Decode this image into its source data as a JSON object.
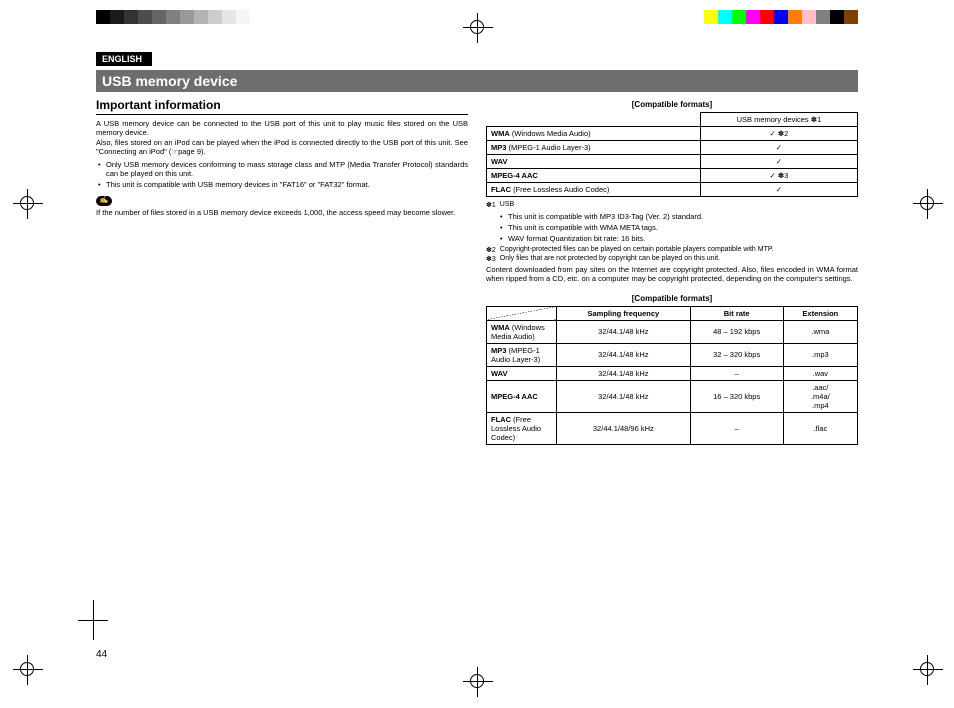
{
  "colorbar_left": [
    "#000000",
    "#1a1a1a",
    "#333333",
    "#4d4d4d",
    "#666666",
    "#808080",
    "#999999",
    "#b3b3b3",
    "#cccccc",
    "#e6e6e6",
    "#f5f5f5",
    "#ffffff"
  ],
  "colorbar_right": [
    "#ffffff",
    "#ffff00",
    "#00ffff",
    "#00ff00",
    "#ff00ff",
    "#ff0000",
    "#0000ff",
    "#ff8000",
    "#ffc0cb",
    "#808080",
    "#000000",
    "#804000"
  ],
  "lang_label": "ENGLISH",
  "title": "USB memory device",
  "subhead": "Important information",
  "para1": "A USB memory device can be connected to the USB port of this unit to play music files stored on the USB memory device.",
  "para2": "Also, files stored on an iPod can be played when the iPod is connected directly to the USB port of this unit. See \"Connecting an iPod\" (☞page 9).",
  "bul1": "Only USB memory devices conforming to mass storage class and MTP (Media Transfer Protocol) standards can be played on this unit.",
  "bul2": "This unit is compatible with USB memory devices in \"FAT16\" or \"FAT32\" format.",
  "note_text": "If the number of files stored in a USB memory device exceeds 1,000, the access speed may become slower.",
  "tbl1_caption": "[Compatible formats]",
  "tbl1_header": "USB memory devices ✽1",
  "tbl1_rows": [
    {
      "name_bold": "WMA",
      "name_rest": " (Windows Media Audio)",
      "val": "✓ ✽2"
    },
    {
      "name_bold": "MP3",
      "name_rest": " (MPEG-1 Audio Layer-3)",
      "val": "✓"
    },
    {
      "name_bold": "WAV",
      "name_rest": "",
      "val": "✓"
    },
    {
      "name_bold": "MPEG-4 AAC",
      "name_rest": "",
      "val": "✓ ✽3"
    },
    {
      "name_bold": "FLAC",
      "name_rest": " (Free Lossless Audio Codec)",
      "val": "✓"
    }
  ],
  "fn1_label": "✽1",
  "fn1_text": "USB",
  "fn1_b1": "This unit is compatible with MP3 ID3-Tag (Ver. 2) standard.",
  "fn1_b2": "This unit is compatible with WMA META tags.",
  "fn1_b3": "WAV format Quantization bit rate: 16 bits.",
  "fn2_label": "✽2",
  "fn2_text": "Copyright-protected files can be played on certain portable players compatible with MTP.",
  "fn3_label": "✽3",
  "fn3_text": "Only files that are not protected by copyright can be played on this unit.",
  "fn_tail": "Content downloaded from pay sites on the Internet are copyright protected. Also, files encoded in WMA format when ripped from a CD, etc. on a computer may be copyright protected, depending on the computer's settings.",
  "tbl2_caption": "[Compatible formats]",
  "tbl2_headers": {
    "c1": "Sampling frequency",
    "c2": "Bit rate",
    "c3": "Extension"
  },
  "tbl2_rows": [
    {
      "name_bold": "WMA",
      "name_rest": " (Windows Media Audio)",
      "freq": "32/44.1/48 kHz",
      "rate": "48 – 192 kbps",
      "ext": ".wma"
    },
    {
      "name_bold": "MP3",
      "name_rest": " (MPEG-1 Audio Layer-3)",
      "freq": "32/44.1/48 kHz",
      "rate": "32 – 320 kbps",
      "ext": ".mp3"
    },
    {
      "name_bold": "WAV",
      "name_rest": "",
      "freq": "32/44.1/48 kHz",
      "rate": "–",
      "ext": ".wav"
    },
    {
      "name_bold": "MPEG-4 AAC",
      "name_rest": "",
      "freq": "32/44.1/48 kHz",
      "rate": "16 – 320 kbps",
      "ext": ".aac/\n.m4a/\n.mp4"
    },
    {
      "name_bold": "FLAC",
      "name_rest": " (Free Lossless Audio Codec)",
      "freq": "32/44.1/48/96 kHz",
      "rate": "–",
      "ext": ".flac"
    }
  ],
  "page_number": "44"
}
